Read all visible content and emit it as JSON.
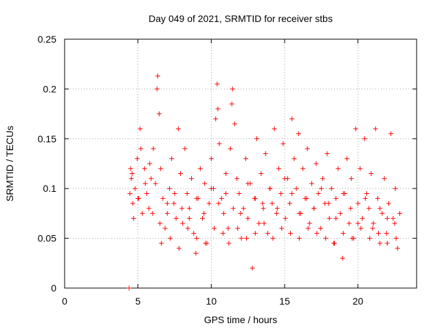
{
  "chart_data": {
    "type": "scatter",
    "title": "Day 049 of 2021, SRMTID for receiver stbs",
    "xlabel": "GPS time / hours",
    "ylabel": "SRMTID / TECUs",
    "xlim": [
      0,
      24
    ],
    "ylim": [
      0,
      0.25
    ],
    "xticks": [
      0,
      5,
      10,
      15,
      20
    ],
    "yticks": [
      0,
      0.05,
      0.1,
      0.15,
      0.2,
      0.25
    ],
    "xtick_labels": [
      "0",
      "5",
      "10",
      "15",
      "20"
    ],
    "ytick_labels": [
      "0",
      "0.05",
      "0.1",
      "0.15",
      "0.2",
      "0.25"
    ],
    "grid": true,
    "marker": "+",
    "color": "#ff0000",
    "series": [
      {
        "name": "SRMTID",
        "x": [
          4.4,
          4.45,
          4.55,
          4.65,
          4.8,
          4.95,
          5.05,
          5.15,
          5.3,
          5.45,
          5.6,
          5.75,
          5.9,
          6.05,
          6.2,
          6.3,
          6.35,
          6.45,
          6.55,
          6.7,
          6.85,
          7.0,
          7.15,
          7.3,
          7.45,
          7.6,
          7.75,
          7.9,
          8.05,
          8.2,
          8.35,
          8.5,
          8.65,
          8.8,
          8.95,
          9.1,
          9.25,
          9.4,
          9.55,
          9.7,
          9.85,
          10.0,
          10.15,
          10.3,
          10.4,
          10.45,
          10.55,
          10.7,
          10.85,
          11.0,
          11.15,
          11.3,
          11.4,
          11.45,
          11.6,
          11.75,
          11.9,
          12.05,
          12.2,
          12.35,
          12.5,
          12.65,
          12.8,
          12.95,
          13.1,
          13.25,
          13.4,
          13.55,
          13.7,
          13.85,
          14.0,
          14.15,
          14.3,
          14.45,
          14.6,
          14.75,
          14.9,
          15.05,
          15.2,
          15.35,
          15.5,
          15.65,
          15.8,
          15.95,
          16.1,
          16.25,
          16.4,
          16.55,
          16.7,
          16.85,
          17.0,
          17.15,
          17.3,
          17.45,
          17.6,
          17.75,
          17.9,
          18.05,
          18.2,
          18.35,
          18.5,
          18.65,
          18.8,
          18.95,
          19.1,
          19.25,
          19.4,
          19.55,
          19.7,
          19.85,
          20.0,
          20.15,
          20.3,
          20.45,
          20.6,
          20.75,
          20.9,
          21.05,
          21.2,
          21.35,
          21.5,
          21.65,
          21.8,
          21.95,
          22.1,
          22.25,
          22.4,
          22.55,
          22.7,
          22.85,
          4.5,
          4.7,
          5.0,
          5.5,
          6.0,
          6.5,
          7.0,
          7.5,
          8.0,
          8.5,
          9.0,
          9.5,
          10.0,
          10.5,
          11.0,
          11.5,
          12.0,
          12.5,
          13.0,
          13.5,
          14.0,
          14.5,
          15.0,
          15.5,
          16.0,
          16.5,
          17.0,
          17.5,
          18.0,
          18.5,
          19.0,
          19.5,
          20.0,
          20.5,
          21.0,
          21.5,
          22.0,
          22.5,
          4.6,
          5.2,
          5.8,
          6.6,
          7.2,
          7.8,
          8.4,
          9.0,
          9.6,
          10.2,
          10.8,
          11.2,
          11.8,
          12.4,
          13.0,
          13.6,
          14.2,
          14.8,
          15.4,
          16.0,
          16.6,
          17.2,
          17.8,
          18.4,
          19.0,
          19.6,
          20.2,
          20.8,
          21.4,
          22.0,
          22.6
        ],
        "y": [
          0.0,
          0.095,
          0.11,
          0.085,
          0.1,
          0.13,
          0.09,
          0.16,
          0.075,
          0.12,
          0.095,
          0.08,
          0.11,
          0.14,
          0.105,
          0.2,
          0.213,
          0.175,
          0.12,
          0.09,
          0.06,
          0.075,
          0.1,
          0.13,
          0.085,
          0.07,
          0.16,
          0.115,
          0.065,
          0.14,
          0.095,
          0.08,
          0.11,
          0.055,
          0.035,
          0.09,
          0.12,
          0.07,
          0.105,
          0.045,
          0.085,
          0.13,
          0.1,
          0.17,
          0.205,
          0.18,
          0.145,
          0.09,
          0.075,
          0.115,
          0.06,
          0.14,
          0.185,
          0.2,
          0.165,
          0.11,
          0.095,
          0.05,
          0.08,
          0.13,
          0.07,
          0.105,
          0.02,
          0.09,
          0.15,
          0.065,
          0.115,
          0.08,
          0.135,
          0.055,
          0.1,
          0.085,
          0.16,
          0.075,
          0.12,
          0.095,
          0.145,
          0.07,
          0.11,
          0.085,
          0.17,
          0.13,
          0.1,
          0.155,
          0.075,
          0.12,
          0.09,
          0.14,
          0.065,
          0.105,
          0.08,
          0.125,
          0.095,
          0.06,
          0.11,
          0.085,
          0.135,
          0.07,
          0.1,
          0.045,
          0.09,
          0.12,
          0.075,
          0.03,
          0.095,
          0.13,
          0.065,
          0.11,
          0.05,
          0.16,
          0.085,
          0.12,
          0.07,
          0.15,
          0.095,
          0.08,
          0.115,
          0.065,
          0.16,
          0.09,
          0.045,
          0.075,
          0.11,
          0.055,
          0.085,
          0.155,
          0.07,
          0.1,
          0.04,
          0.075,
          0.12,
          0.07,
          0.09,
          0.105,
          0.075,
          0.065,
          0.085,
          0.095,
          0.08,
          0.07,
          0.09,
          0.075,
          0.1,
          0.085,
          0.095,
          0.08,
          0.075,
          0.105,
          0.09,
          0.085,
          0.1,
          0.08,
          0.11,
          0.095,
          0.075,
          0.09,
          0.08,
          0.1,
          0.085,
          0.07,
          0.095,
          0.08,
          0.065,
          0.09,
          0.06,
          0.08,
          0.07,
          0.065,
          0.115,
          0.14,
          0.125,
          0.045,
          0.05,
          0.04,
          0.06,
          0.05,
          0.045,
          0.06,
          0.055,
          0.045,
          0.06,
          0.05,
          0.055,
          0.065,
          0.05,
          0.06,
          0.055,
          0.05,
          0.06,
          0.055,
          0.05,
          0.045,
          0.055,
          0.05,
          0.06,
          0.05,
          0.055,
          0.045,
          0.05
        ]
      }
    ]
  }
}
